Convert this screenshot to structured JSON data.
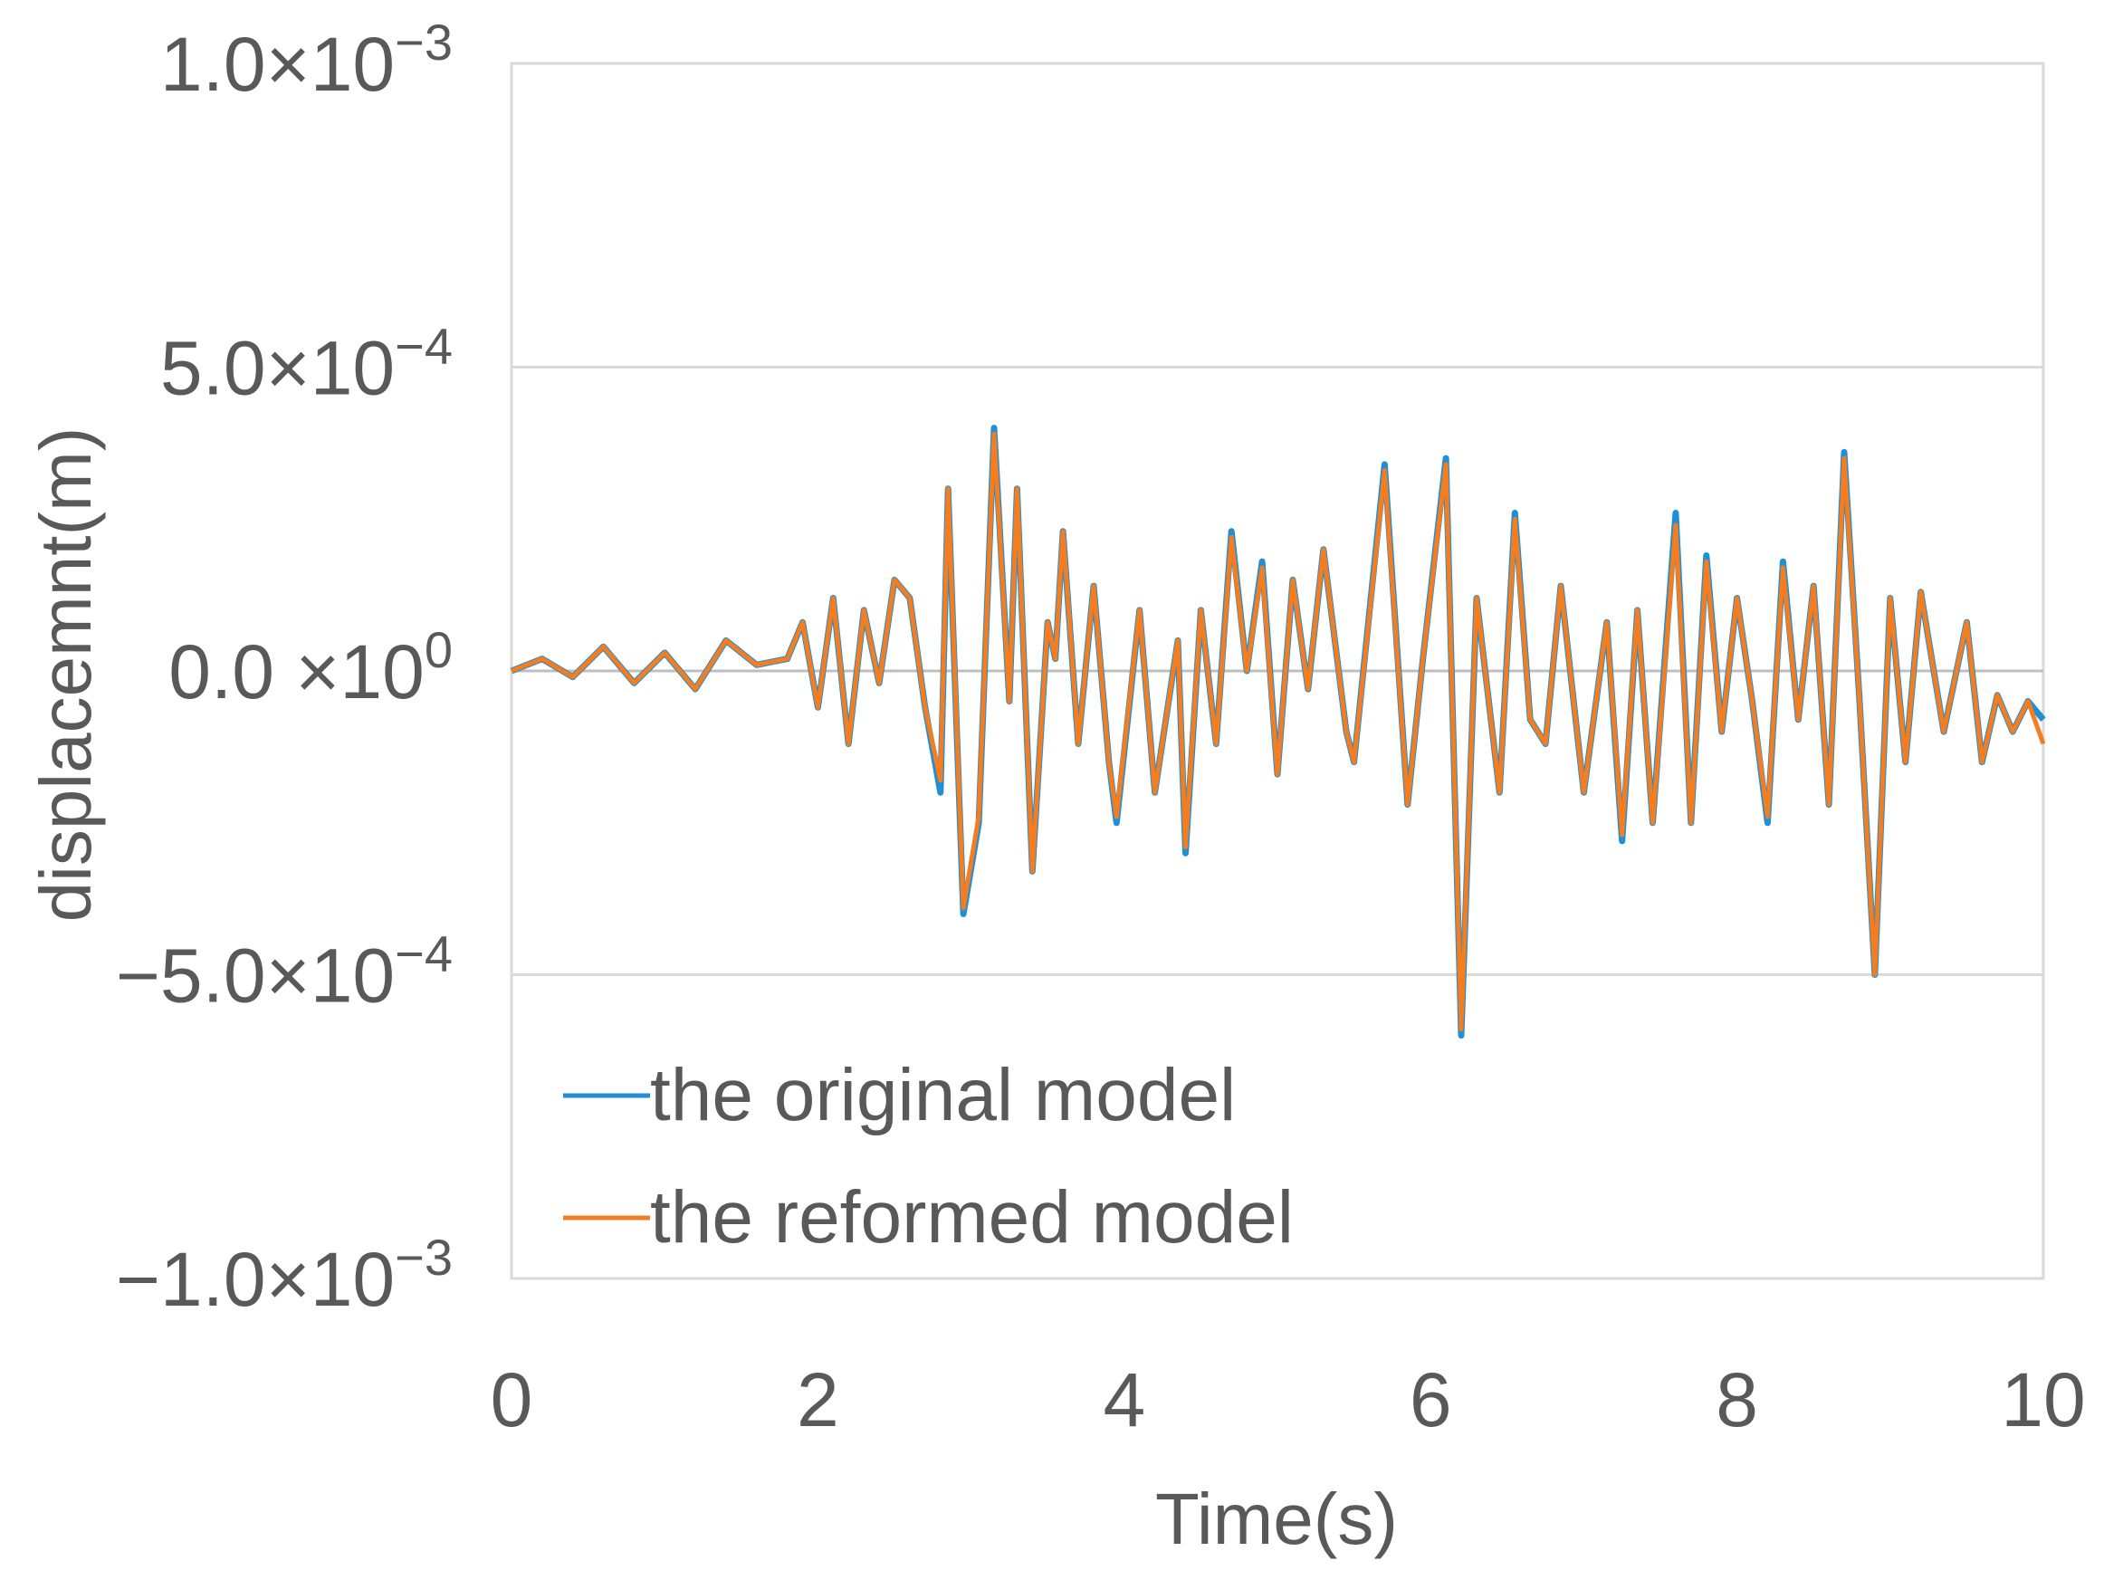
{
  "chart_data": {
    "type": "line",
    "xlabel": "Time(s)",
    "ylabel": "displacemnt(m)",
    "xlim": [
      0,
      10
    ],
    "ylim": [
      -0.001,
      0.001
    ],
    "x_ticks": [
      "0",
      "2",
      "4",
      "6",
      "8",
      "10"
    ],
    "y_ticks": [
      {
        "value": 0.001,
        "mantissa": "1.0×10",
        "exponent": "−3"
      },
      {
        "value": 0.0005,
        "mantissa": "5.0×10",
        "exponent": "−4"
      },
      {
        "value": 0,
        "mantissa": "0.0 ×10",
        "exponent": "0"
      },
      {
        "value": -0.0005,
        "mantissa": "−5.0×10",
        "exponent": "−4"
      },
      {
        "value": -0.001,
        "mantissa": "−1.0×10",
        "exponent": "−3"
      }
    ],
    "grid": true,
    "legend_position": "bottom-left",
    "colors": {
      "original": "#1f8fd6",
      "reformed": "#f47d20",
      "grid": "#d9d9d9",
      "text": "#595959"
    },
    "x": [
      0,
      0.2,
      0.4,
      0.6,
      0.8,
      1.0,
      1.2,
      1.4,
      1.6,
      1.8,
      1.9,
      2.0,
      2.1,
      2.2,
      2.3,
      2.4,
      2.5,
      2.6,
      2.7,
      2.8,
      2.85,
      2.95,
      3.05,
      3.15,
      3.25,
      3.3,
      3.4,
      3.5,
      3.55,
      3.6,
      3.7,
      3.8,
      3.9,
      3.95,
      4.1,
      4.2,
      4.35,
      4.4,
      4.5,
      4.6,
      4.7,
      4.8,
      4.9,
      5.0,
      5.1,
      5.2,
      5.3,
      5.45,
      5.5,
      5.7,
      5.85,
      5.95,
      6.1,
      6.2,
      6.3,
      6.45,
      6.55,
      6.65,
      6.75,
      6.85,
      7.0,
      7.15,
      7.25,
      7.35,
      7.45,
      7.6,
      7.7,
      7.8,
      7.9,
      8.0,
      8.1,
      8.2,
      8.3,
      8.4,
      8.5,
      8.6,
      8.7,
      8.8,
      8.9,
      9.0,
      9.1,
      9.2,
      9.35,
      9.5,
      9.6,
      9.7,
      9.8,
      9.9,
      10.0
    ],
    "series": [
      {
        "name": "the original model",
        "values": [
          0,
          2e-05,
          -1e-05,
          4e-05,
          -2e-05,
          3e-05,
          -3e-05,
          5e-05,
          1e-05,
          2e-05,
          8e-05,
          -6e-05,
          0.00012,
          -0.00012,
          0.0001,
          -2e-05,
          0.00015,
          0.00012,
          -6e-05,
          -0.0002,
          0.0003,
          -0.0004,
          -0.00025,
          0.0004,
          -5e-05,
          0.0003,
          -0.00033,
          8e-05,
          2e-05,
          0.00023,
          -0.00012,
          0.00014,
          -0.00015,
          -0.00025,
          0.0001,
          -0.0002,
          5e-05,
          -0.0003,
          0.0001,
          -0.00012,
          0.00023,
          0,
          0.00018,
          -0.00017,
          0.00015,
          -3e-05,
          0.0002,
          -0.0001,
          -0.00015,
          0.00034,
          -0.00022,
          2e-05,
          0.00035,
          -0.0006,
          0.00012,
          -0.0002,
          0.00026,
          -8e-05,
          -0.00012,
          0.00014,
          -0.0002,
          8e-05,
          -0.00028,
          0.0001,
          -0.00025,
          0.00026,
          -0.00025,
          0.00019,
          -0.0001,
          0.00012,
          -5e-05,
          -0.00025,
          0.00018,
          -8e-05,
          0.00014,
          -0.00022,
          0.00036,
          -5e-05,
          -0.0005,
          0.00012,
          -0.00015,
          0.00013,
          -0.0001,
          8e-05,
          -0.00015,
          -4e-05,
          -0.0001,
          -5e-05,
          -8e-05
        ]
      },
      {
        "name": "the reformed model",
        "values": [
          0,
          2e-05,
          -1e-05,
          4e-05,
          -2e-05,
          3e-05,
          -3e-05,
          5e-05,
          1e-05,
          2e-05,
          8e-05,
          -6e-05,
          0.00012,
          -0.00012,
          0.0001,
          -2e-05,
          0.00015,
          0.00012,
          -6e-05,
          -0.00018,
          0.0003,
          -0.00039,
          -0.00024,
          0.00039,
          -5e-05,
          0.0003,
          -0.00033,
          8e-05,
          2e-05,
          0.00023,
          -0.00012,
          0.00014,
          -0.00015,
          -0.00024,
          0.0001,
          -0.0002,
          5e-05,
          -0.00029,
          0.0001,
          -0.00012,
          0.00022,
          0,
          0.00017,
          -0.00017,
          0.00015,
          -3e-05,
          0.0002,
          -0.0001,
          -0.00015,
          0.00033,
          -0.00022,
          2e-05,
          0.00034,
          -0.00059,
          0.00012,
          -0.0002,
          0.00025,
          -8e-05,
          -0.00012,
          0.00014,
          -0.0002,
          8e-05,
          -0.00027,
          0.0001,
          -0.00025,
          0.00024,
          -0.00025,
          0.00018,
          -0.0001,
          0.00012,
          -5e-05,
          -0.00024,
          0.00017,
          -8e-05,
          0.00014,
          -0.00022,
          0.00035,
          -5e-05,
          -0.0005,
          0.00012,
          -0.00015,
          0.00013,
          -0.0001,
          8e-05,
          -0.00015,
          -4e-05,
          -0.0001,
          -5e-05,
          -0.00012
        ]
      }
    ]
  }
}
